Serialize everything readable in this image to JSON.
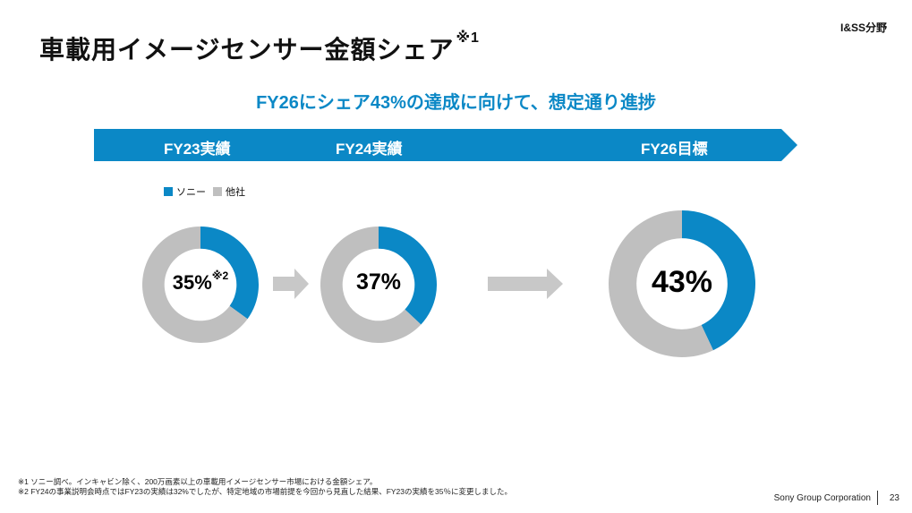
{
  "header": {
    "segment_tag": "I&SS分野",
    "title": "車載用イメージセンサー金額シェア",
    "title_note": "※1"
  },
  "headline": "FY26にシェア43%の達成に向けて、想定通り進捗",
  "banner": {
    "labels": [
      "FY23実績",
      "FY24実績",
      "FY26目標"
    ],
    "color": "#0b88c6"
  },
  "legend": {
    "items": [
      {
        "label": "ソニー",
        "color": "#0b88c6"
      },
      {
        "label": "他社",
        "color": "#bfbfbf"
      }
    ]
  },
  "chart_data": [
    {
      "type": "pie",
      "title": "FY23実績",
      "categories": [
        "ソニー",
        "他社"
      ],
      "values": [
        35,
        65
      ],
      "center_label": "35%",
      "center_note": "※2"
    },
    {
      "type": "pie",
      "title": "FY24実績",
      "categories": [
        "ソニー",
        "他社"
      ],
      "values": [
        37,
        63
      ],
      "center_label": "37%",
      "center_note": ""
    },
    {
      "type": "pie",
      "title": "FY26目標",
      "categories": [
        "ソニー",
        "他社"
      ],
      "values": [
        43,
        57
      ],
      "center_label": "43%",
      "center_note": ""
    }
  ],
  "footnotes": [
    "※1 ソニー調べ。インキャビン除く、200万画素以上の車載用イメージセンサー市場における金額シェア。",
    "※2 FY24の事業説明会時点ではFY23の実績は32%でしたが、特定地域の市場前提を今回から見直した結果、FY23の実績を35％に変更しました。"
  ],
  "footer": {
    "company": "Sony Group Corporation",
    "page": "23"
  }
}
